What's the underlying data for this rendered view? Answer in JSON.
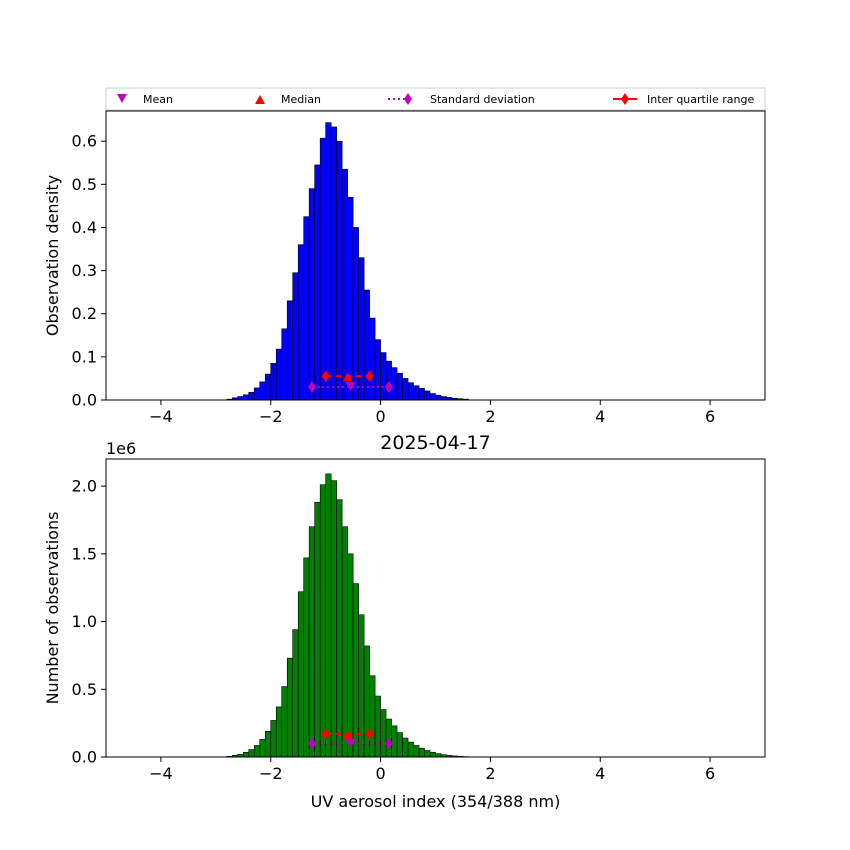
{
  "chart_data": [
    {
      "type": "bar",
      "panel": "top",
      "title": "",
      "xlabel": "",
      "ylabel": "Observation density",
      "xlim": [
        -5,
        7
      ],
      "ylim": [
        0,
        0.67
      ],
      "xticks": [
        -4,
        -2,
        0,
        2,
        4,
        6
      ],
      "xtick_labels": [
        "−4",
        "−2",
        "0",
        "2",
        "4",
        "6"
      ],
      "yticks": [
        0.0,
        0.1,
        0.2,
        0.3,
        0.4,
        0.5,
        0.6
      ],
      "ytick_labels": [
        "0.0",
        "0.1",
        "0.2",
        "0.3",
        "0.4",
        "0.5",
        "0.6"
      ],
      "bar_color": "#0000ff",
      "bin_width": 0.1,
      "bin_start": -2.8,
      "values": [
        0.002,
        0.005,
        0.008,
        0.012,
        0.018,
        0.028,
        0.042,
        0.06,
        0.085,
        0.118,
        0.165,
        0.23,
        0.295,
        0.36,
        0.425,
        0.49,
        0.545,
        0.607,
        0.643,
        0.633,
        0.6,
        0.535,
        0.47,
        0.4,
        0.33,
        0.255,
        0.19,
        0.14,
        0.11,
        0.09,
        0.075,
        0.062,
        0.05,
        0.04,
        0.033,
        0.027,
        0.021,
        0.015,
        0.011,
        0.008,
        0.006,
        0.004,
        0.003,
        0.002
      ],
      "markers": {
        "mean": {
          "x": -0.55,
          "y": 0.03
        },
        "median": {
          "x": -0.6,
          "y": 0.055
        },
        "std": {
          "x": [
            -1.25,
            0.15
          ],
          "y": 0.03
        },
        "iqr": {
          "x": [
            -1.0,
            -0.2
          ],
          "y": 0.055
        }
      },
      "legend": {
        "position": "top",
        "entries": [
          "Mean",
          "Median",
          "Standard deviation",
          "Inter quartile range"
        ]
      }
    },
    {
      "type": "bar",
      "panel": "bottom",
      "title": "2025-04-17",
      "xlabel": "UV aerosol index (354/388 nm)",
      "ylabel": "Number of observations",
      "y_scale_note": "1e6",
      "xlim": [
        -5,
        7
      ],
      "ylim": [
        0,
        2.2
      ],
      "xticks": [
        -4,
        -2,
        0,
        2,
        4,
        6
      ],
      "xtick_labels": [
        "−4",
        "−2",
        "0",
        "2",
        "4",
        "6"
      ],
      "yticks": [
        0.0,
        0.5,
        1.0,
        1.5,
        2.0
      ],
      "ytick_labels": [
        "0.0",
        "0.5",
        "1.0",
        "1.5",
        "2.0"
      ],
      "bar_color": "#008000",
      "bin_width": 0.1,
      "bin_start": -2.8,
      "values": [
        0.005,
        0.012,
        0.02,
        0.035,
        0.055,
        0.085,
        0.13,
        0.19,
        0.27,
        0.37,
        0.52,
        0.73,
        0.94,
        1.22,
        1.47,
        1.7,
        1.88,
        2.01,
        2.09,
        2.04,
        1.9,
        1.7,
        1.5,
        1.28,
        1.05,
        0.82,
        0.6,
        0.45,
        0.35,
        0.28,
        0.23,
        0.18,
        0.14,
        0.11,
        0.085,
        0.065,
        0.048,
        0.035,
        0.025,
        0.017,
        0.012,
        0.008,
        0.005,
        0.003
      ],
      "markers": {
        "mean": {
          "x": -0.55,
          "y": 0.1
        },
        "median": {
          "x": -0.6,
          "y": 0.17
        },
        "std": {
          "x": [
            -1.25,
            0.15
          ],
          "y": 0.1
        },
        "iqr": {
          "x": [
            -1.0,
            -0.2
          ],
          "y": 0.17
        }
      }
    }
  ]
}
